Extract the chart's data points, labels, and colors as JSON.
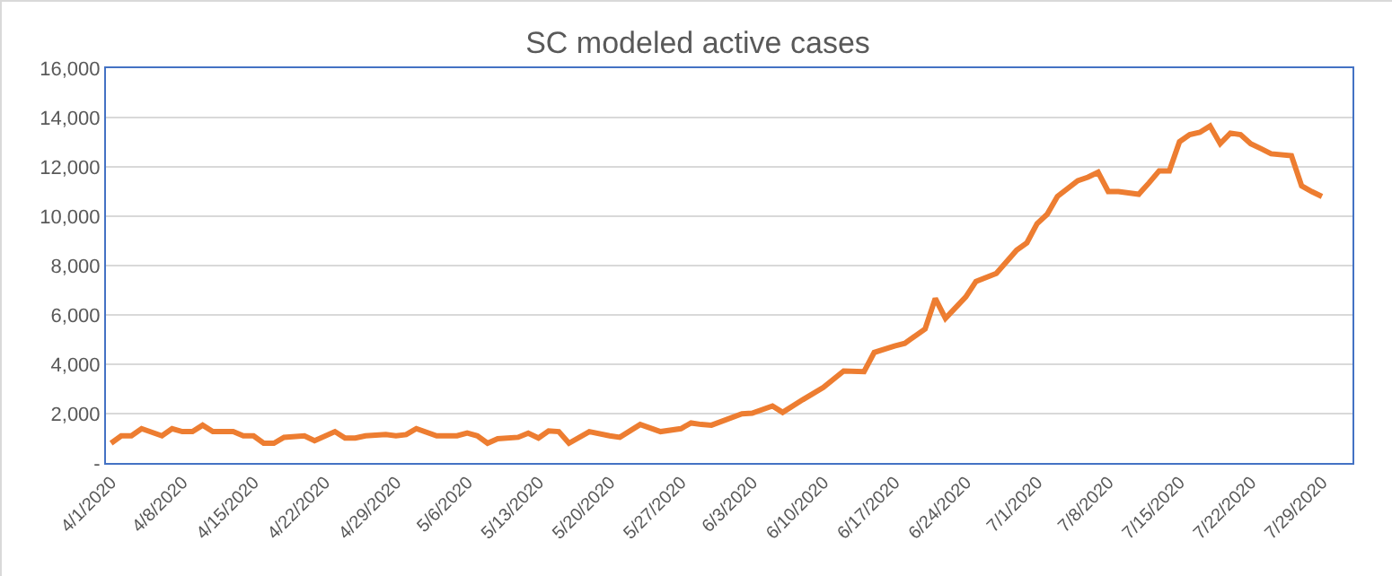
{
  "chart_data": {
    "type": "line",
    "title": "SC modeled active cases",
    "x": [
      "2020-04-01",
      "2020-04-02",
      "2020-04-03",
      "2020-04-04",
      "2020-04-06",
      "2020-04-07",
      "2020-04-08",
      "2020-04-09",
      "2020-04-10",
      "2020-04-11",
      "2020-04-13",
      "2020-04-14",
      "2020-04-15",
      "2020-04-16",
      "2020-04-17",
      "2020-04-18",
      "2020-04-20",
      "2020-04-21",
      "2020-04-23",
      "2020-04-24",
      "2020-04-25",
      "2020-04-26",
      "2020-04-28",
      "2020-04-29",
      "2020-04-30",
      "2020-05-01",
      "2020-05-03",
      "2020-05-05",
      "2020-05-06",
      "2020-05-07",
      "2020-05-08",
      "2020-05-09",
      "2020-05-11",
      "2020-05-12",
      "2020-05-13",
      "2020-05-14",
      "2020-05-15",
      "2020-05-16",
      "2020-05-18",
      "2020-05-20",
      "2020-05-21",
      "2020-05-23",
      "2020-05-25",
      "2020-05-27",
      "2020-05-28",
      "2020-05-29",
      "2020-05-30",
      "2020-06-02",
      "2020-06-03",
      "2020-06-05",
      "2020-06-06",
      "2020-06-08",
      "2020-06-10",
      "2020-06-12",
      "2020-06-14",
      "2020-06-15",
      "2020-06-17",
      "2020-06-18",
      "2020-06-20",
      "2020-06-21",
      "2020-06-22",
      "2020-06-24",
      "2020-06-25",
      "2020-06-27",
      "2020-06-29",
      "2020-06-30",
      "2020-07-01",
      "2020-07-02",
      "2020-07-03",
      "2020-07-05",
      "2020-07-06",
      "2020-07-07",
      "2020-07-08",
      "2020-07-09",
      "2020-07-11",
      "2020-07-12",
      "2020-07-13",
      "2020-07-14",
      "2020-07-15",
      "2020-07-16",
      "2020-07-17",
      "2020-07-18",
      "2020-07-19",
      "2020-07-20",
      "2020-07-21",
      "2020-07-22",
      "2020-07-23",
      "2020-07-24",
      "2020-07-26",
      "2020-07-27",
      "2020-07-28",
      "2020-07-29"
    ],
    "series": [
      {
        "color": "#ed7d31",
        "values": [
          800,
          1100,
          1100,
          1390,
          1100,
          1390,
          1270,
          1270,
          1530,
          1270,
          1270,
          1100,
          1100,
          800,
          800,
          1040,
          1100,
          900,
          1270,
          1010,
          1010,
          1100,
          1150,
          1100,
          1150,
          1390,
          1100,
          1100,
          1210,
          1100,
          800,
          980,
          1040,
          1210,
          1010,
          1300,
          1270,
          800,
          1270,
          1100,
          1040,
          1560,
          1270,
          1390,
          1620,
          1560,
          1530,
          1990,
          2020,
          2310,
          2050,
          2570,
          3060,
          3730,
          3700,
          4480,
          4740,
          4850,
          5430,
          6670,
          5860,
          6730,
          7360,
          7680,
          8630,
          8920,
          9700,
          10080,
          10800,
          11440,
          11580,
          11780,
          11000,
          11000,
          10890,
          11350,
          11840,
          11840,
          13020,
          13310,
          13400,
          13660,
          12940,
          13370,
          13310,
          12940,
          12740,
          12530,
          12450,
          11230,
          11000,
          10800
        ]
      }
    ],
    "xlim": [
      "2020-03-31T12:00",
      "2020-08-01"
    ],
    "xticks": [
      {
        "value": "2020-04-01",
        "label": "4/1/2020"
      },
      {
        "value": "2020-04-08",
        "label": "4/8/2020"
      },
      {
        "value": "2020-04-15",
        "label": "4/15/2020"
      },
      {
        "value": "2020-04-22",
        "label": "4/22/2020"
      },
      {
        "value": "2020-04-29",
        "label": "4/29/2020"
      },
      {
        "value": "2020-05-06",
        "label": "5/6/2020"
      },
      {
        "value": "2020-05-13",
        "label": "5/13/2020"
      },
      {
        "value": "2020-05-20",
        "label": "5/20/2020"
      },
      {
        "value": "2020-05-27",
        "label": "5/27/2020"
      },
      {
        "value": "2020-06-03",
        "label": "6/3/2020"
      },
      {
        "value": "2020-06-10",
        "label": "6/10/2020"
      },
      {
        "value": "2020-06-17",
        "label": "6/17/2020"
      },
      {
        "value": "2020-06-24",
        "label": "6/24/2020"
      },
      {
        "value": "2020-07-01",
        "label": "7/1/2020"
      },
      {
        "value": "2020-07-08",
        "label": "7/8/2020"
      },
      {
        "value": "2020-07-15",
        "label": "7/15/2020"
      },
      {
        "value": "2020-07-22",
        "label": "7/22/2020"
      },
      {
        "value": "2020-07-29",
        "label": "7/29/2020"
      }
    ],
    "ylim": [
      0,
      16000
    ],
    "yticks": [
      {
        "value": 0,
        "label": "-"
      },
      {
        "value": 2000,
        "label": "2,000"
      },
      {
        "value": 4000,
        "label": "4,000"
      },
      {
        "value": 6000,
        "label": "6,000"
      },
      {
        "value": 8000,
        "label": "8,000"
      },
      {
        "value": 10000,
        "label": "10,000"
      },
      {
        "value": 12000,
        "label": "12,000"
      },
      {
        "value": 14000,
        "label": "14,000"
      },
      {
        "value": 16000,
        "label": "16,000"
      }
    ],
    "grid": "y",
    "marker": "none",
    "line_style": "solid"
  }
}
